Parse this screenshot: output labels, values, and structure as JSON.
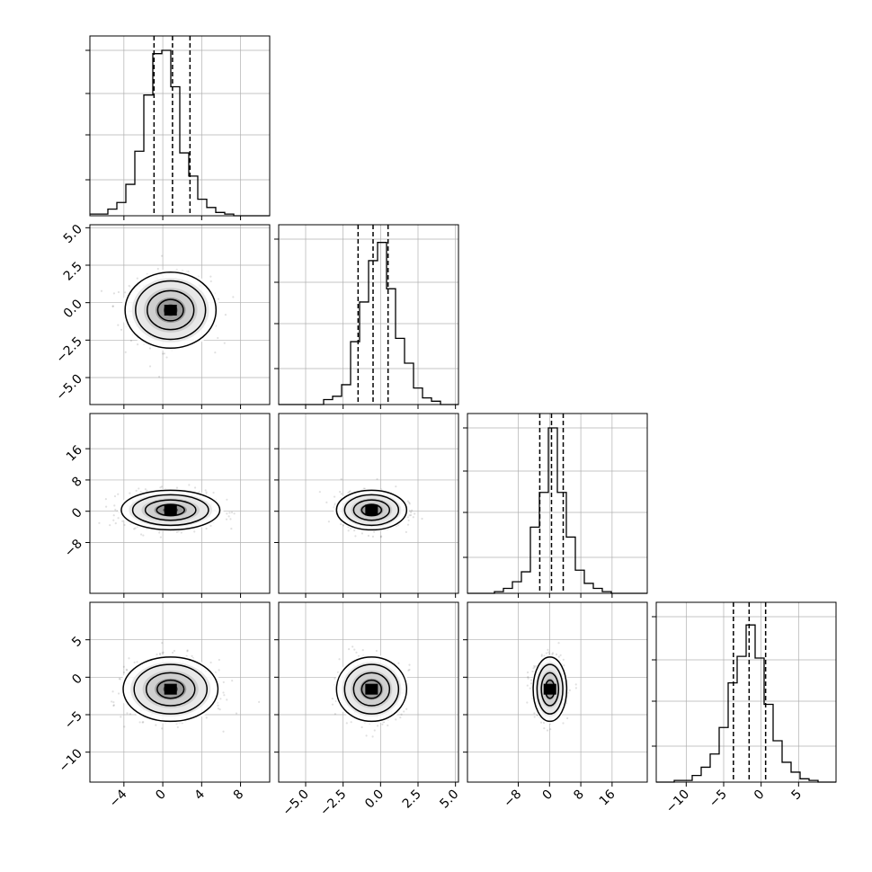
{
  "figure": {
    "background": "#ffffff",
    "grid": true,
    "axis_color": "#000000",
    "grid_color": "#b0b0b0"
  },
  "chart_data": {
    "type": "corner",
    "dimensions": 4,
    "axes": [
      {
        "index": 0,
        "range": [
          -7.5,
          11
        ],
        "ticks": [
          -4,
          0,
          4,
          8
        ],
        "tick_labels": [
          "−4",
          "0",
          "4",
          "8"
        ]
      },
      {
        "index": 1,
        "range": [
          -6.8,
          5.2
        ],
        "ticks": [
          -5.0,
          -2.5,
          0.0,
          2.5,
          5.0
        ],
        "tick_labels": [
          "−5.0",
          "−2.5",
          "0.0",
          "2.5",
          "5.0"
        ]
      },
      {
        "index": 2,
        "range": [
          -21,
          25
        ],
        "ticks": [
          -8,
          0,
          8,
          16
        ],
        "tick_labels": [
          "−8",
          "0",
          "8",
          "16"
        ]
      },
      {
        "index": 3,
        "range": [
          -14,
          10
        ],
        "ticks": [
          -10,
          -5,
          0,
          5
        ],
        "tick_labels": [
          "−10",
          "−5",
          "0",
          "5"
        ]
      }
    ],
    "quantiles": [
      {
        "index": 0,
        "q16": -0.9,
        "median": 1.0,
        "q84": 2.8
      },
      {
        "index": 1,
        "q16": -1.5,
        "median": -0.5,
        "q84": 0.5
      },
      {
        "index": 2,
        "q16": -2.5,
        "median": 0.5,
        "q84": 3.5
      },
      {
        "index": 3,
        "q16": -3.7,
        "median": -1.6,
        "q84": 0.6
      }
    ],
    "histograms": [
      {
        "index": 0,
        "counts": [
          0.01,
          0.01,
          0.04,
          0.08,
          0.19,
          0.39,
          0.73,
          0.98,
          1.0,
          0.78,
          0.38,
          0.24,
          0.1,
          0.05,
          0.02,
          0.01,
          0.0,
          0.0,
          0.0,
          0.0
        ]
      },
      {
        "index": 1,
        "counts": [
          0.0,
          0.0,
          0.0,
          0.0,
          0.0,
          0.03,
          0.05,
          0.12,
          0.38,
          0.62,
          0.87,
          0.98,
          0.7,
          0.4,
          0.25,
          0.1,
          0.04,
          0.02,
          0.0,
          0.0
        ]
      },
      {
        "index": 2,
        "counts": [
          0.0,
          0.0,
          0.0,
          0.01,
          0.03,
          0.07,
          0.13,
          0.4,
          0.61,
          1.0,
          0.61,
          0.34,
          0.14,
          0.06,
          0.03,
          0.01,
          0.0,
          0.0,
          0.0,
          0.0
        ]
      },
      {
        "index": 3,
        "counts": [
          0.0,
          0.0,
          0.01,
          0.01,
          0.04,
          0.09,
          0.17,
          0.33,
          0.6,
          0.76,
          0.95,
          0.75,
          0.47,
          0.25,
          0.12,
          0.06,
          0.02,
          0.01,
          0.0,
          0.0
        ]
      }
    ],
    "pairs": [
      {
        "x": 0,
        "y": 1,
        "center": [
          0.8,
          -0.5
        ],
        "spread": [
          2.4,
          1.3
        ]
      },
      {
        "x": 0,
        "y": 2,
        "center": [
          0.8,
          0.3
        ],
        "spread": [
          2.6,
          2.6
        ]
      },
      {
        "x": 1,
        "y": 2,
        "center": [
          -0.6,
          0.3
        ],
        "spread": [
          1.2,
          2.6
        ]
      },
      {
        "x": 0,
        "y": 3,
        "center": [
          0.8,
          -1.6
        ],
        "spread": [
          2.5,
          2.2
        ]
      },
      {
        "x": 1,
        "y": 3,
        "center": [
          -0.6,
          -1.6
        ],
        "spread": [
          1.2,
          2.2
        ]
      },
      {
        "x": 2,
        "y": 3,
        "center": [
          0.1,
          -1.6
        ],
        "spread": [
          2.2,
          2.2
        ]
      }
    ]
  }
}
